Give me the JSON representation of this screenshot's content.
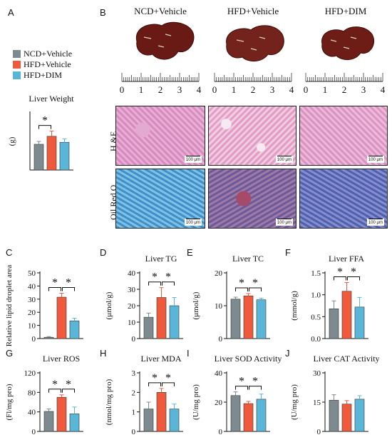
{
  "panel_letters": [
    "A",
    "B",
    "C",
    "D",
    "E",
    "F",
    "G",
    "H",
    "I",
    "J"
  ],
  "groups": [
    "NCD+Vehicle",
    "HFD+Vehicle",
    "HFD+DIM"
  ],
  "colors": {
    "ncd": "#7d8a8f",
    "hfd": "#f05a3c",
    "dim": "#5ab6d8"
  },
  "imaging": {
    "row_labels": [
      "H &E",
      "Oil Red O"
    ],
    "scale_label": "100 μm",
    "ruler_numbers": [
      "0",
      "1",
      "2",
      "3",
      "4"
    ]
  },
  "chart_data": [
    {
      "id": "liver_weight",
      "type": "bar",
      "title": "Liver Weight",
      "ylabel": "(g)",
      "ylim": [
        0,
        2
      ],
      "yticks": [],
      "categories": [
        "NCD+Vehicle",
        "HFD+Vehicle",
        "HFD+DIM"
      ],
      "values": [
        0.9,
        1.18,
        0.97
      ],
      "errors": [
        0.1,
        0.18,
        0.12
      ],
      "significance": [
        {
          "from": 0,
          "to": 1,
          "label": "*"
        }
      ]
    },
    {
      "id": "lipid_area",
      "type": "bar",
      "title": "",
      "ylabel": "Relative lipid droplet area",
      "ylim": [
        0,
        50
      ],
      "yticks": [
        "0",
        "10",
        "20",
        "30",
        "40",
        "50"
      ],
      "categories": [
        "NCD+Vehicle",
        "HFD+Vehicle",
        "HFD+DIM"
      ],
      "values": [
        1,
        31.5,
        13.5
      ],
      "errors": [
        0.5,
        3,
        2
      ],
      "significance": [
        {
          "from": 0,
          "to": 1,
          "label": "*"
        },
        {
          "from": 1,
          "to": 2,
          "label": "*"
        }
      ]
    },
    {
      "id": "liver_tg",
      "type": "bar",
      "title": "Liver TG",
      "ylabel": "(μmol/g)",
      "ylim": [
        0,
        40
      ],
      "yticks": [
        "0",
        "10",
        "20",
        "30",
        "40"
      ],
      "categories": [
        "NCD+Vehicle",
        "HFD+Vehicle",
        "HFD+DIM"
      ],
      "values": [
        13,
        25,
        20
      ],
      "errors": [
        2.5,
        6,
        5
      ],
      "significance": [
        {
          "from": 0,
          "to": 1,
          "label": "*"
        },
        {
          "from": 1,
          "to": 2,
          "label": "*"
        }
      ]
    },
    {
      "id": "liver_tc",
      "type": "bar",
      "title": "Liver TC",
      "ylabel": "(μmol/g)",
      "ylim": [
        0,
        20
      ],
      "yticks": [
        "0",
        "10",
        "20"
      ],
      "categories": [
        "NCD+Vehicle",
        "HFD+Vehicle",
        "HFD+DIM"
      ],
      "values": [
        12,
        13,
        11.8
      ],
      "errors": [
        0.6,
        0.7,
        0.5
      ],
      "significance": [
        {
          "from": 0,
          "to": 1,
          "label": "*"
        },
        {
          "from": 1,
          "to": 2,
          "label": "*"
        }
      ]
    },
    {
      "id": "liver_ffa",
      "type": "bar",
      "title": "Liver FFA",
      "ylabel": "(mmol/g)",
      "ylim": [
        0,
        1.5
      ],
      "yticks": [
        "0.0",
        "0.5",
        "1.0",
        "1.5"
      ],
      "categories": [
        "NCD+Vehicle",
        "HFD+Vehicle",
        "HFD+DIM"
      ],
      "values": [
        0.68,
        1.08,
        0.72
      ],
      "errors": [
        0.18,
        0.2,
        0.22
      ],
      "significance": [
        {
          "from": 0,
          "to": 1,
          "label": "*"
        },
        {
          "from": 1,
          "to": 2,
          "label": "*"
        }
      ]
    },
    {
      "id": "liver_ros",
      "type": "bar",
      "title": "Liver ROS",
      "ylabel": "(Fl/mg pro)",
      "ylim": [
        0,
        120
      ],
      "yticks": [
        "0",
        "40",
        "80",
        "120"
      ],
      "categories": [
        "NCD+Vehicle",
        "HFD+Vehicle",
        "HFD+DIM"
      ],
      "values": [
        41,
        70,
        36
      ],
      "errors": [
        5,
        5,
        14
      ],
      "significance": [
        {
          "from": 0,
          "to": 1,
          "label": "*"
        },
        {
          "from": 1,
          "to": 2,
          "label": "*"
        }
      ]
    },
    {
      "id": "liver_mda",
      "type": "bar",
      "title": "Liver MDA",
      "ylabel": "(nmol/mg pro)",
      "ylim": [
        0,
        3
      ],
      "yticks": [
        "0",
        "1",
        "2",
        "3"
      ],
      "categories": [
        "NCD+Vehicle",
        "HFD+Vehicle",
        "HFD+DIM"
      ],
      "values": [
        1.15,
        2.0,
        1.15
      ],
      "errors": [
        0.35,
        0.2,
        0.25
      ],
      "significance": [
        {
          "from": 0,
          "to": 1,
          "label": "*"
        },
        {
          "from": 1,
          "to": 2,
          "label": "*"
        }
      ]
    },
    {
      "id": "liver_sod",
      "type": "bar",
      "title": "Liver SOD Activity",
      "ylabel": "(U/mg pro)",
      "ylim": [
        0,
        40
      ],
      "yticks": [
        "0",
        "20",
        "40"
      ],
      "categories": [
        "NCD+Vehicle",
        "HFD+Vehicle",
        "HFD+DIM"
      ],
      "values": [
        24.5,
        19,
        22
      ],
      "errors": [
        2.5,
        1.5,
        3.5
      ],
      "significance": [
        {
          "from": 0,
          "to": 1,
          "label": "*"
        },
        {
          "from": 1,
          "to": 2,
          "label": "*"
        }
      ]
    },
    {
      "id": "liver_cat",
      "type": "bar",
      "title": "Liver CAT Activity",
      "ylabel": "(U/mg pro)",
      "ylim": [
        0,
        30
      ],
      "yticks": [
        "0",
        "15",
        "30"
      ],
      "categories": [
        "NCD+Vehicle",
        "HFD+Vehicle",
        "HFD+DIM"
      ],
      "values": [
        16,
        14,
        16.5
      ],
      "errors": [
        2.8,
        1.8,
        1.8
      ],
      "significance": []
    }
  ]
}
